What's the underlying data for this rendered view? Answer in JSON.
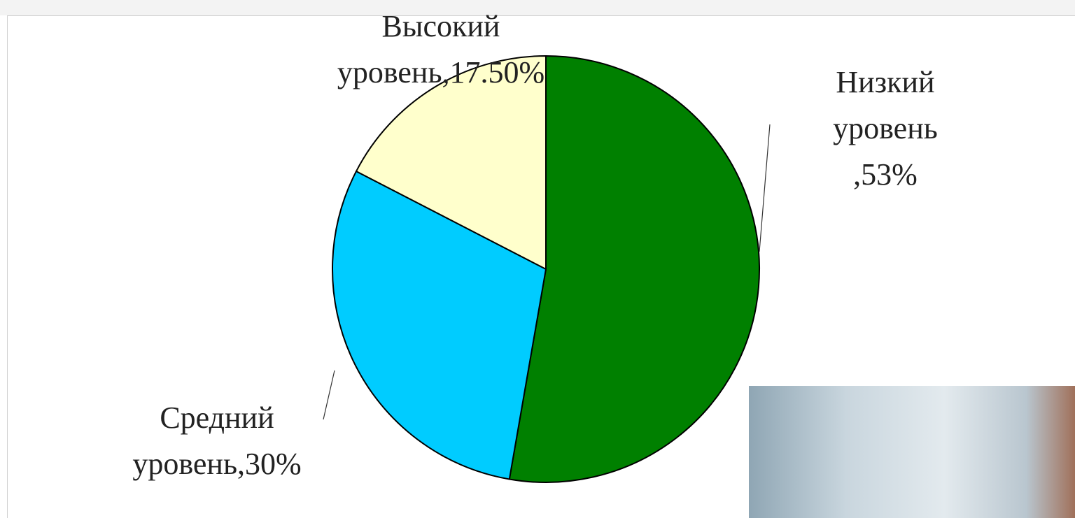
{
  "chart_data": {
    "type": "pie",
    "values": [
      53,
      30,
      17.5
    ],
    "value_labels": [
      "Низкий уровень ,53%",
      "Средний уровень,30%",
      "Высокий уровень,17.50%"
    ],
    "colors": [
      "#008000",
      "#00ccff",
      "#ffffcc"
    ]
  }
}
